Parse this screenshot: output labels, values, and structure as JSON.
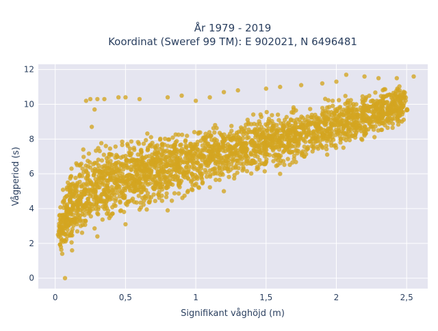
{
  "chart_data": {
    "type": "scatter",
    "title_lines": [
      "År 1979 - 2019",
      "Koordinat (Sweref 99 TM): E 902021, N 6496481"
    ],
    "xlabel": "Signifikant våghöjd (m)",
    "ylabel": "Vågperiod (s)",
    "xlim": [
      -0.12,
      2.65
    ],
    "ylim": [
      -0.6,
      12.3
    ],
    "x_ticks": [
      0,
      0.5,
      1,
      1.5,
      2,
      2.5
    ],
    "x_tick_labels": [
      "0",
      "0,5",
      "1",
      "1,5",
      "2",
      "2,5"
    ],
    "y_ticks": [
      0,
      2,
      4,
      6,
      8,
      10,
      12
    ],
    "y_tick_labels": [
      "0",
      "2",
      "4",
      "6",
      "8",
      "10",
      "12"
    ],
    "grid": true,
    "legend": "none",
    "colors": {
      "marker": "#d4a520",
      "plot_bg": "#e5e5f0",
      "grid": "#ffffff",
      "text": "#2a3f5f"
    },
    "cloud_envelope": {
      "x": [
        0.03,
        0.1,
        0.2,
        0.3,
        0.5,
        0.75,
        1.0,
        1.25,
        1.5,
        1.75,
        2.0,
        2.25,
        2.5
      ],
      "y_lower": [
        1.3,
        1.5,
        2.0,
        2.5,
        3.0,
        3.8,
        4.5,
        5.2,
        5.8,
        6.4,
        7.0,
        7.8,
        8.6
      ],
      "y_upper": [
        4.2,
        6.5,
        7.5,
        8.2,
        8.6,
        8.8,
        9.2,
        9.5,
        9.8,
        10.2,
        10.6,
        11.0,
        11.5
      ]
    },
    "points": [
      {
        "x": 0.07,
        "y": 0.0
      },
      {
        "x": 0.22,
        "y": 10.2
      },
      {
        "x": 0.25,
        "y": 10.3
      },
      {
        "x": 0.3,
        "y": 10.3
      },
      {
        "x": 0.35,
        "y": 10.3
      },
      {
        "x": 0.45,
        "y": 10.4
      },
      {
        "x": 0.5,
        "y": 10.4
      },
      {
        "x": 0.6,
        "y": 10.3
      },
      {
        "x": 0.8,
        "y": 10.4
      },
      {
        "x": 0.9,
        "y": 10.5
      },
      {
        "x": 1.0,
        "y": 10.2
      },
      {
        "x": 1.1,
        "y": 10.4
      },
      {
        "x": 1.2,
        "y": 10.7
      },
      {
        "x": 1.3,
        "y": 10.8
      },
      {
        "x": 1.5,
        "y": 10.9
      },
      {
        "x": 1.6,
        "y": 11.0
      },
      {
        "x": 1.75,
        "y": 11.1
      },
      {
        "x": 1.9,
        "y": 11.2
      },
      {
        "x": 2.0,
        "y": 11.3
      },
      {
        "x": 2.07,
        "y": 11.7
      },
      {
        "x": 2.2,
        "y": 11.6
      },
      {
        "x": 2.3,
        "y": 11.5
      },
      {
        "x": 2.43,
        "y": 11.5
      },
      {
        "x": 2.55,
        "y": 11.6
      },
      {
        "x": 2.45,
        "y": 10.8
      },
      {
        "x": 2.2,
        "y": 8.2
      },
      {
        "x": 2.05,
        "y": 7.5
      },
      {
        "x": 1.6,
        "y": 6.0
      },
      {
        "x": 1.2,
        "y": 5.0
      },
      {
        "x": 0.8,
        "y": 3.9
      },
      {
        "x": 0.5,
        "y": 3.1
      },
      {
        "x": 0.3,
        "y": 2.4
      },
      {
        "x": 0.12,
        "y": 1.6
      },
      {
        "x": 0.05,
        "y": 1.4
      },
      {
        "x": 0.04,
        "y": 1.8
      },
      {
        "x": 0.02,
        "y": 2.5
      },
      {
        "x": 0.03,
        "y": 3.6
      },
      {
        "x": 0.09,
        "y": 5.5
      },
      {
        "x": 0.15,
        "y": 6.6
      },
      {
        "x": 0.2,
        "y": 7.4
      },
      {
        "x": 0.26,
        "y": 8.7
      },
      {
        "x": 0.28,
        "y": 9.7
      }
    ]
  }
}
